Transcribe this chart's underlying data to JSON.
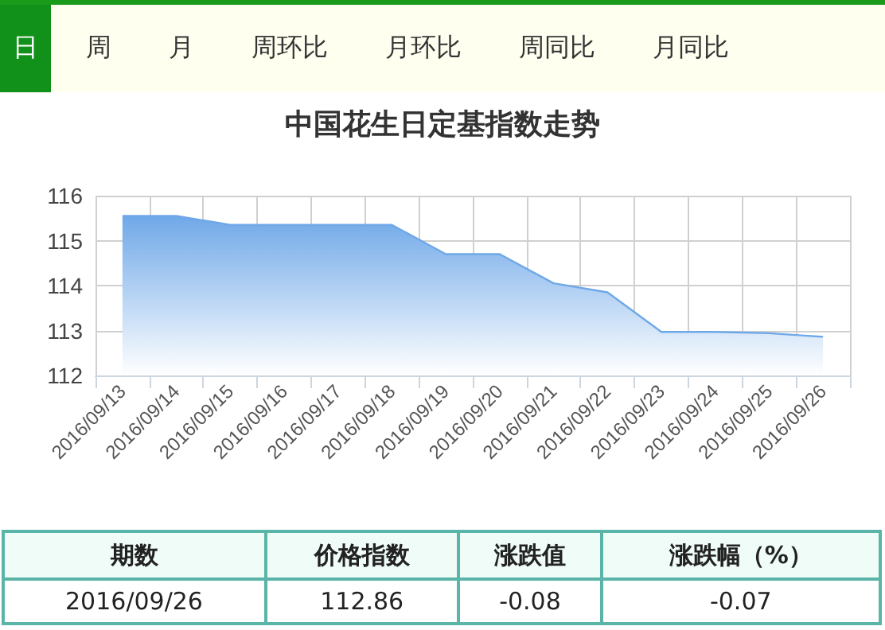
{
  "chart_data": {
    "type": "area",
    "title": "中国花生日定基指数走势",
    "categories": [
      "2016/09/13",
      "2016/09/14",
      "2016/09/15",
      "2016/09/16",
      "2016/09/17",
      "2016/09/18",
      "2016/09/19",
      "2016/09/20",
      "2016/09/21",
      "2016/09/22",
      "2016/09/23",
      "2016/09/24",
      "2016/09/25",
      "2016/09/26"
    ],
    "series": [
      {
        "color": "#6fa8e8",
        "values": [
          115.55,
          115.55,
          115.35,
          115.35,
          115.35,
          115.35,
          114.7,
          114.7,
          114.05,
          113.85,
          112.97,
          112.97,
          112.94,
          112.86
        ]
      }
    ],
    "ylim": [
      112,
      116
    ],
    "yticks": [
      112,
      113,
      114,
      115,
      116
    ],
    "grid": true,
    "marker": "none",
    "annotations": [
      "日",
      "周",
      "月",
      "周环比",
      "月环比",
      "周同比",
      "月同比",
      "期数",
      "价格指数",
      "涨跌值",
      "涨跌幅（%）",
      "2016/09/26",
      "112.86",
      "-0.08",
      "-0.07"
    ]
  }
}
